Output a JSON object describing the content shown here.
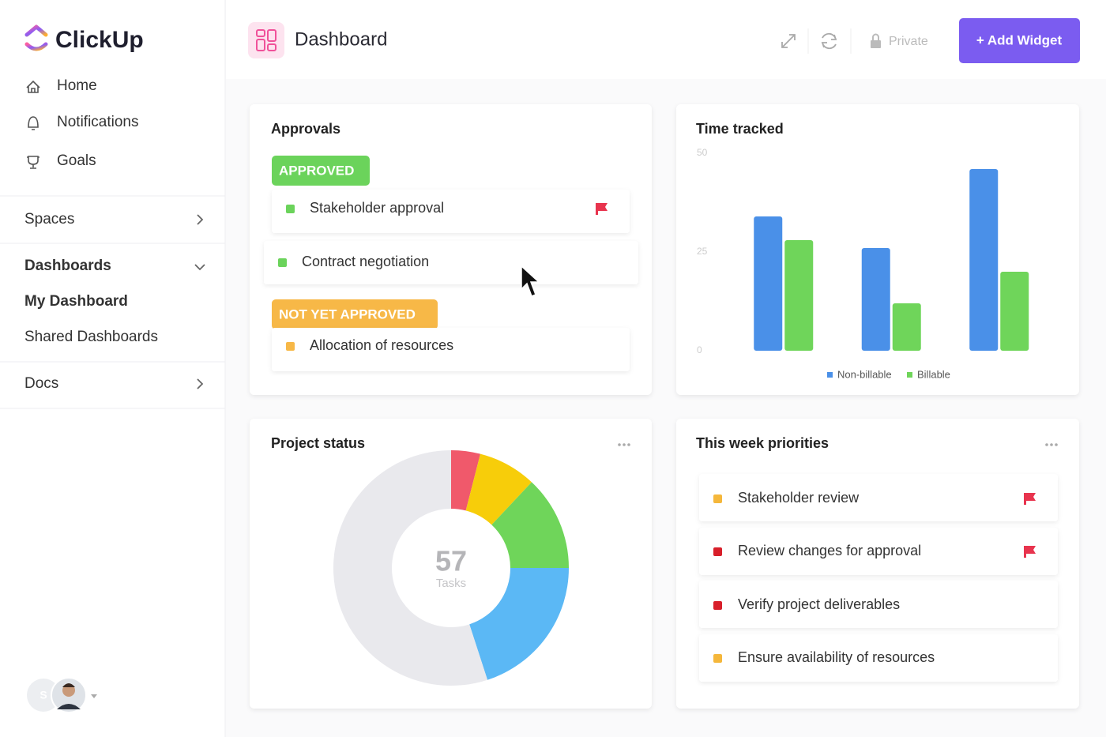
{
  "sidebar": {
    "logo": "ClickUp",
    "nav": [
      "Home",
      "Notifications",
      "Goals"
    ],
    "sections": [
      "Spaces",
      "Dashboards",
      "Docs"
    ],
    "dashboards": [
      "My Dashboard",
      "Shared Dashboards"
    ],
    "avatar_initial": "S"
  },
  "header": {
    "title": "Dashboard",
    "private": "Private",
    "add_widget": "+ Add Widget"
  },
  "approvals": {
    "title": "Approvals",
    "groups": [
      {
        "label": "APPROVED",
        "color": "#6bd35b",
        "items": [
          {
            "text": "Stakeholder approval",
            "flag": true
          },
          {
            "text": "Contract negotiation",
            "flag": false
          }
        ]
      },
      {
        "label": "NOT YET APPROVED",
        "color": "#f7b847",
        "items": [
          {
            "text": "Allocation of resources",
            "flag": false
          }
        ]
      }
    ]
  },
  "time_tracked": {
    "type": "bar",
    "title": "Time tracked",
    "categories": [
      null,
      null,
      null
    ],
    "ylim": [
      0,
      50
    ],
    "yticks": [
      0,
      25,
      50
    ],
    "series": [
      {
        "name": "Non-billable",
        "color": "#4a90e8",
        "values": [
          34,
          26,
          46
        ]
      },
      {
        "name": "Billable",
        "color": "#6fd55a",
        "values": [
          28,
          12,
          20
        ]
      }
    ]
  },
  "project_status": {
    "type": "pie",
    "title": "Project status",
    "values": [
      4,
      8,
      13,
      20,
      55
    ],
    "colors": [
      "#f0596b",
      "#f7cd0a",
      "#6fd55a",
      "#5bb8f5",
      "#e9e9ed"
    ],
    "center_value": "57",
    "center_label": "Tasks"
  },
  "priorities": {
    "title": "This week priorities",
    "items": [
      {
        "text": "Stakeholder review",
        "color": "#f5b73b",
        "flag": true
      },
      {
        "text": "Review changes for approval",
        "color": "#d81f2a",
        "flag": true
      },
      {
        "text": "Verify project deliverables",
        "color": "#d81f2a",
        "flag": false
      },
      {
        "text": "Ensure availability of resources",
        "color": "#f5b73b",
        "flag": false
      }
    ]
  }
}
